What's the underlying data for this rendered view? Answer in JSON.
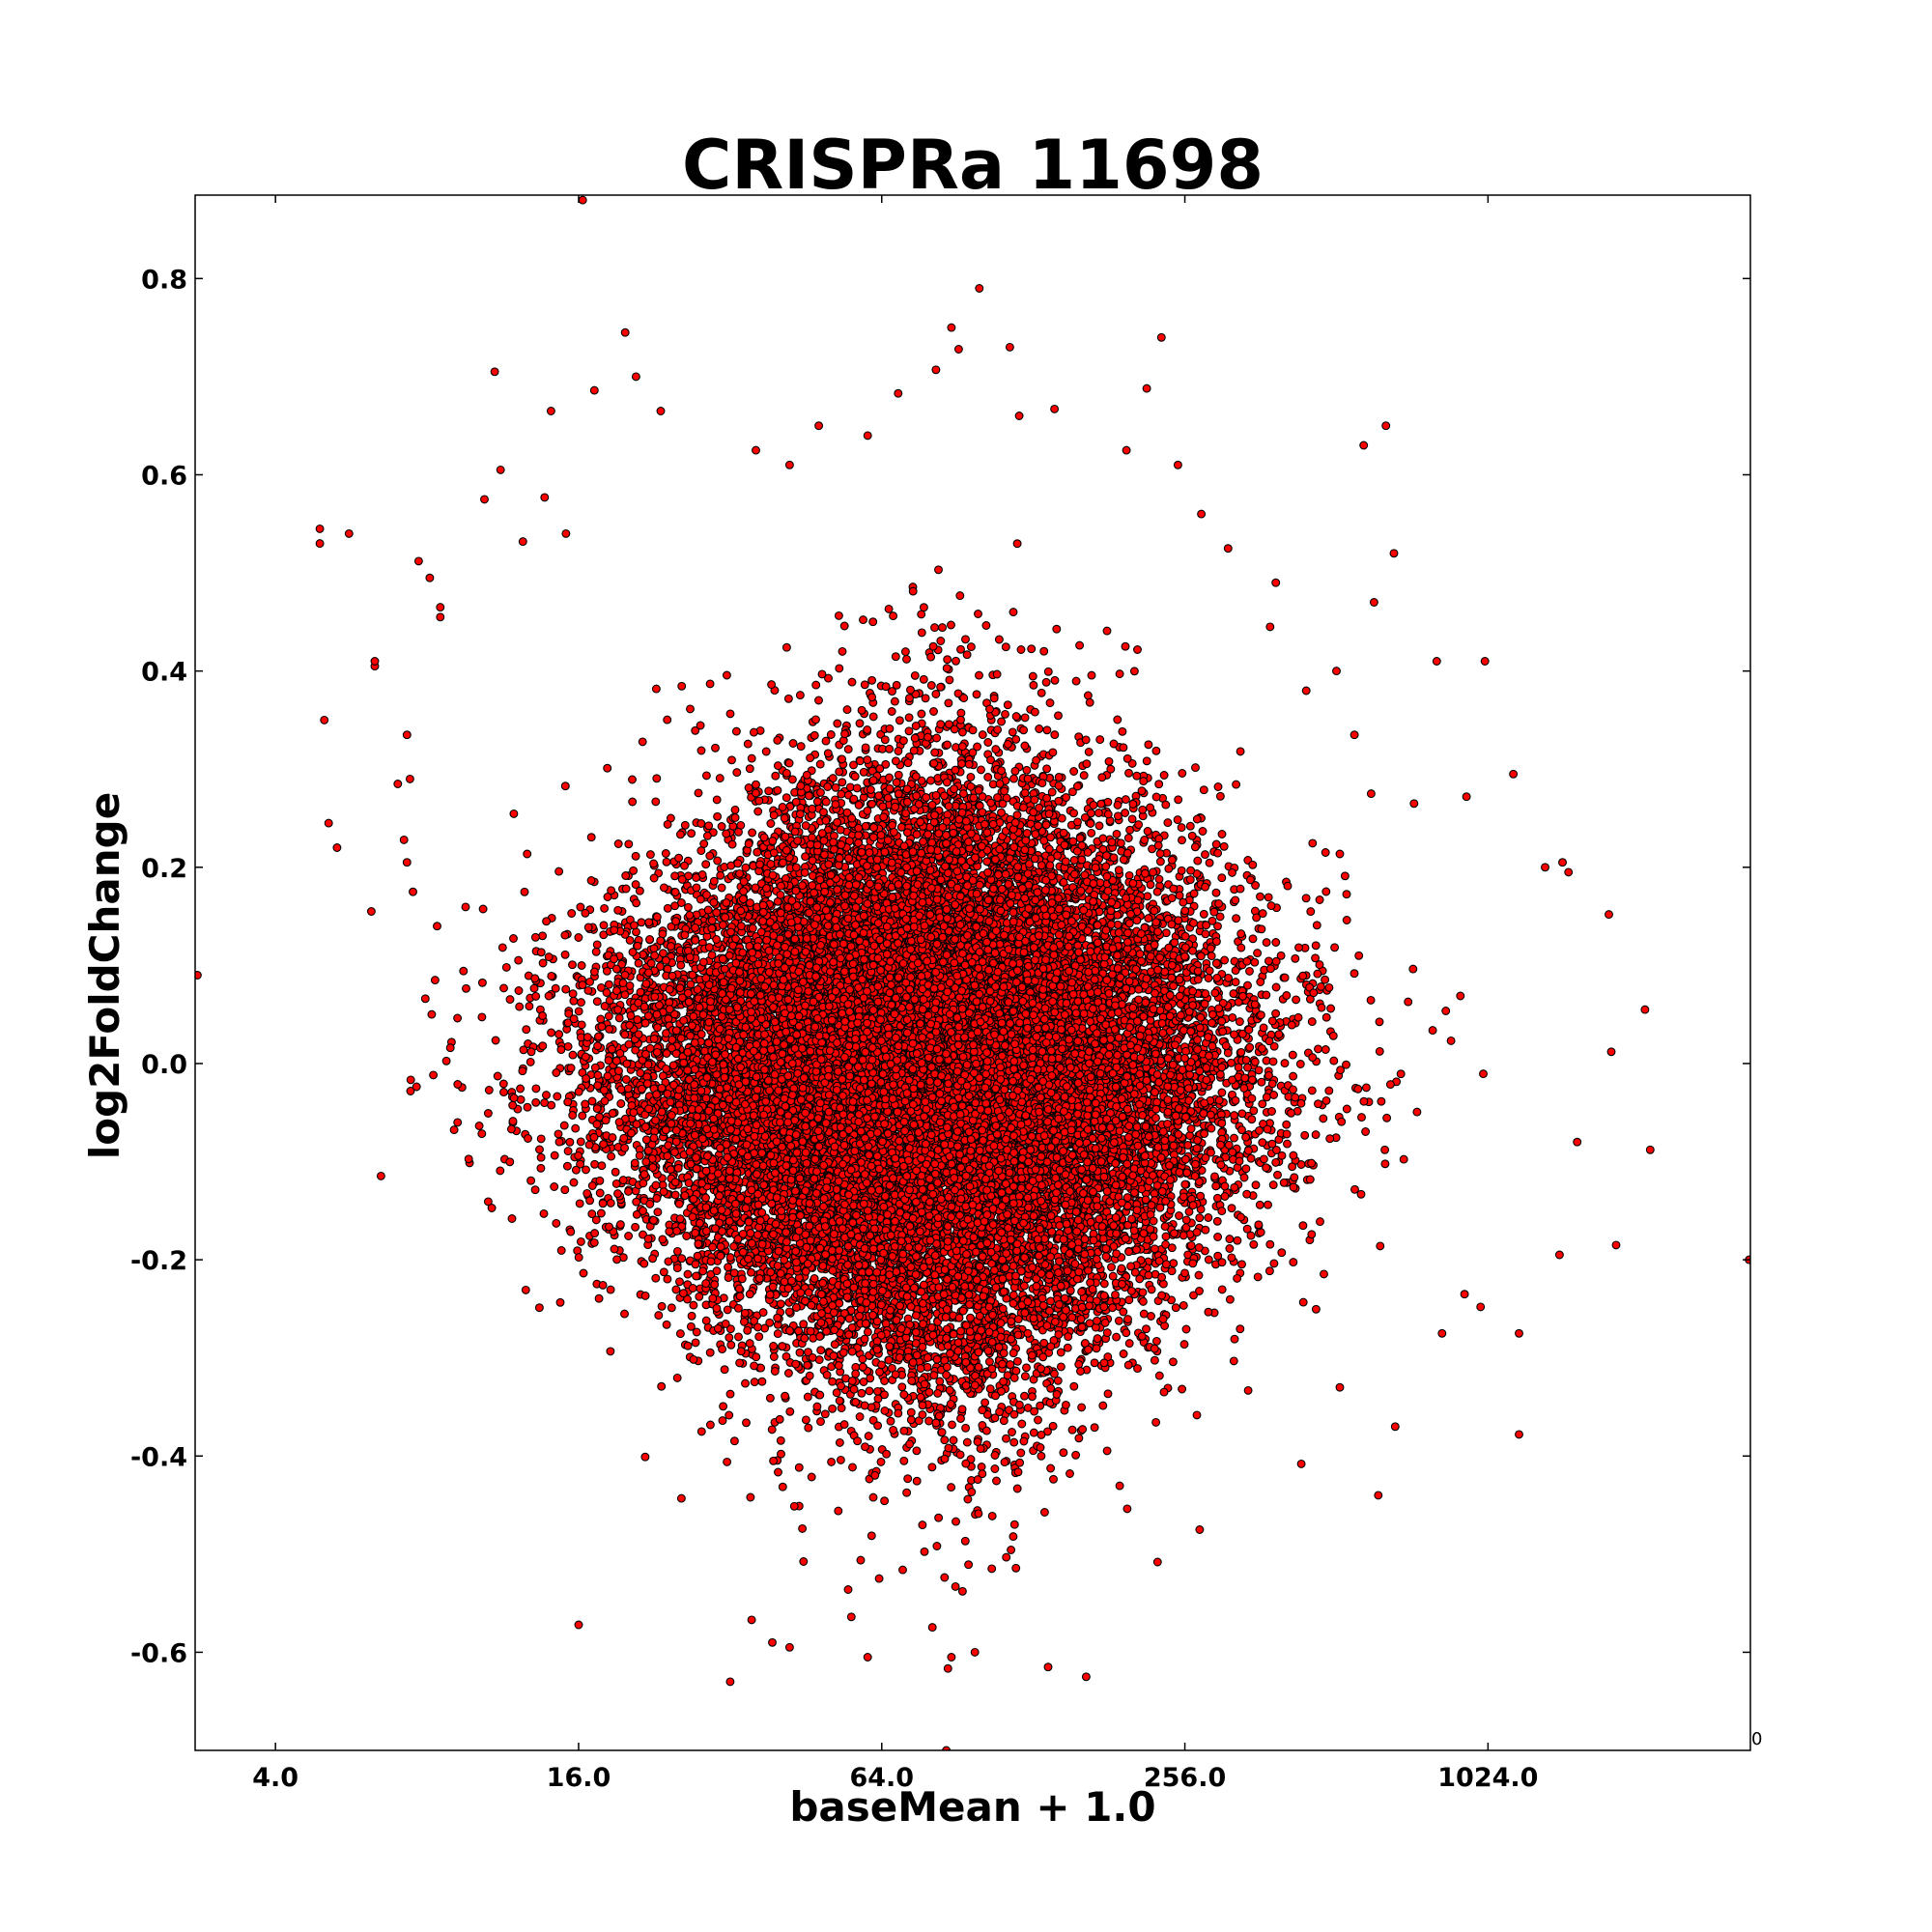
{
  "chart_data": {
    "type": "scatter",
    "title": "CRISPRa 11698",
    "xlabel": "baseMean + 1.0",
    "ylabel": "log2FoldChange",
    "x_scale": "log2",
    "xlim": [
      2.77,
      3400
    ],
    "ylim": [
      -0.7,
      0.885
    ],
    "x_ticks": [
      4,
      16,
      64,
      256,
      1024
    ],
    "x_tick_labels": [
      "4.0",
      "16.0",
      "64.0",
      "256.0",
      "1024.0"
    ],
    "y_ticks": [
      0.8,
      0.6,
      0.4,
      0.2,
      0.0,
      -0.2,
      -0.4,
      -0.6
    ],
    "y_tick_labels": [
      "0.8",
      "0.6",
      "0.4",
      "0.2",
      "0.0",
      "-0.2",
      "-0.4",
      "-0.6"
    ],
    "corner_label": "0",
    "grid": false,
    "legend": "none",
    "marker_color": "#ff0000",
    "marker_edge_color": "#000000",
    "series": [
      {
        "points": [
          [
            4.9,
            0.545
          ],
          [
            4.9,
            0.53
          ],
          [
            5.6,
            0.54
          ],
          [
            6.3,
            0.405
          ],
          [
            6.3,
            0.41
          ],
          [
            5.0,
            0.35
          ],
          [
            5.1,
            0.245
          ],
          [
            5.3,
            0.22
          ],
          [
            6.2,
            0.155
          ],
          [
            7.7,
            0.512
          ],
          [
            8.1,
            0.495
          ],
          [
            8.5,
            0.465
          ],
          [
            8.5,
            0.455
          ],
          [
            7.3,
            0.335
          ],
          [
            7.4,
            0.29
          ],
          [
            7.0,
            0.285
          ],
          [
            7.2,
            0.228
          ],
          [
            7.3,
            0.205
          ],
          [
            7.5,
            0.175
          ],
          [
            8.3,
            0.085
          ],
          [
            8.9,
            0.016
          ],
          [
            9.2,
            -0.06
          ],
          [
            10.4,
            0.575
          ],
          [
            10.9,
            0.705
          ],
          [
            11.2,
            0.605
          ],
          [
            13.7,
            0.577
          ],
          [
            12.4,
            0.532
          ],
          [
            14.1,
            0.665
          ],
          [
            15.1,
            0.54
          ],
          [
            16.3,
            0.88
          ],
          [
            17.2,
            0.686
          ],
          [
            19.8,
            0.745
          ],
          [
            20.8,
            0.7
          ],
          [
            23.3,
            0.665
          ],
          [
            11.8,
            -0.158
          ],
          [
            16.0,
            -0.572
          ],
          [
            32.0,
            -0.63
          ],
          [
            35.3,
            -0.567
          ],
          [
            38.8,
            -0.59
          ],
          [
            42.0,
            -0.595
          ],
          [
            60.0,
            -0.605
          ],
          [
            88.0,
            -0.605
          ],
          [
            86.0,
            -0.7
          ],
          [
            98.0,
            -0.6
          ],
          [
            137.0,
            -0.615
          ],
          [
            163.0,
            -0.625
          ],
          [
            226.0,
            -0.508
          ],
          [
            274.0,
            -0.475
          ],
          [
            88.0,
            0.75
          ],
          [
            91.0,
            0.728
          ],
          [
            100.0,
            0.79
          ],
          [
            115.0,
            0.73
          ],
          [
            82.0,
            0.707
          ],
          [
            230.0,
            0.74
          ],
          [
            215.0,
            0.688
          ],
          [
            196.0,
            0.625
          ],
          [
            141.0,
            0.667
          ],
          [
            120.0,
            0.66
          ],
          [
            69.0,
            0.683
          ],
          [
            60.0,
            0.64
          ],
          [
            48.0,
            0.65
          ],
          [
            42.0,
            0.61
          ],
          [
            36.0,
            0.625
          ],
          [
            248.0,
            0.61
          ],
          [
            276.0,
            0.56
          ],
          [
            312.0,
            0.525
          ],
          [
            378.0,
            0.445
          ],
          [
            388.0,
            0.49
          ],
          [
            446.0,
            0.38
          ],
          [
            512.0,
            0.4
          ],
          [
            556.0,
            0.335
          ],
          [
            600.0,
            0.275
          ],
          [
            608.0,
            0.47
          ],
          [
            666.0,
            0.52
          ],
          [
            642.0,
            0.65
          ],
          [
            580.0,
            0.63
          ],
          [
            730.0,
            0.265
          ],
          [
            810.0,
            0.41
          ],
          [
            1010.0,
            0.41
          ],
          [
            928.0,
            0.272
          ],
          [
            1150.0,
            0.295
          ],
          [
            1330.0,
            0.2
          ],
          [
            1440.0,
            0.205
          ],
          [
            1480.0,
            0.195
          ],
          [
            1780.0,
            0.152
          ],
          [
            1800.0,
            0.012
          ],
          [
            2100.0,
            0.055
          ],
          [
            2150.0,
            -0.088
          ],
          [
            1840.0,
            -0.185
          ],
          [
            1540.0,
            -0.08
          ],
          [
            1420.0,
            -0.195
          ],
          [
            1180.0,
            -0.275
          ],
          [
            1180.0,
            -0.378
          ],
          [
            990.0,
            -0.248
          ],
          [
            920.0,
            -0.235
          ],
          [
            830.0,
            -0.275
          ],
          [
            670.0,
            -0.37
          ],
          [
            620.0,
            -0.44
          ],
          [
            520.0,
            -0.33
          ],
          [
            436.0,
            -0.408
          ],
          [
            3380.0,
            -0.2
          ],
          [
            2.8,
            0.09
          ]
        ]
      }
    ]
  }
}
